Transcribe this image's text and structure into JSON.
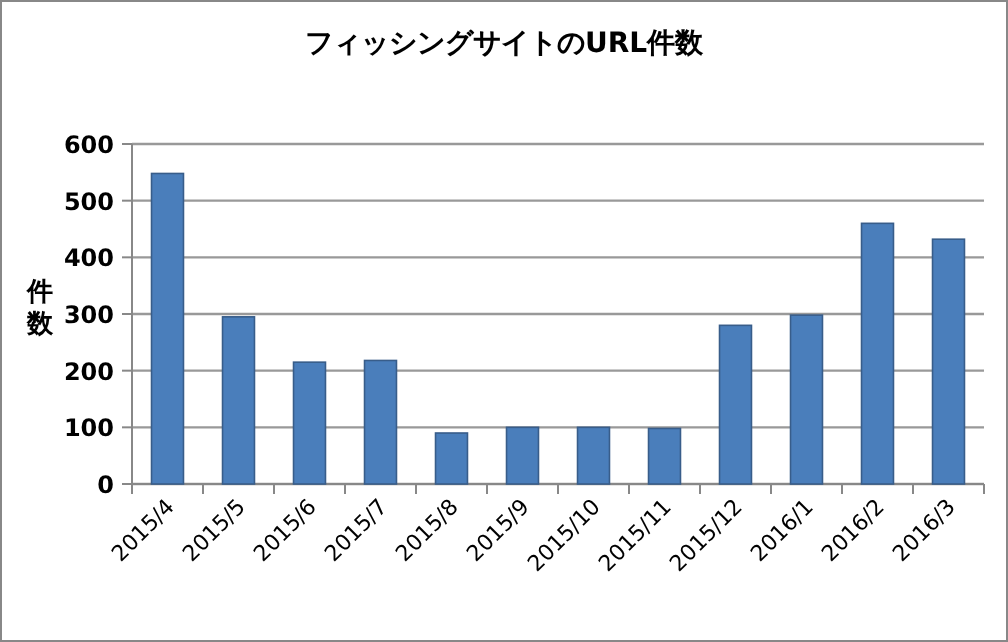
{
  "chart_data": {
    "type": "bar",
    "title": "フィッシングサイトのURL件数",
    "ylabel": "件数",
    "categories": [
      "2015/4",
      "2015/5",
      "2015/6",
      "2015/7",
      "2015/8",
      "2015/9",
      "2015/10",
      "2015/11",
      "2015/12",
      "2016/1",
      "2016/2",
      "2016/3"
    ],
    "values": [
      548,
      295,
      215,
      218,
      90,
      100,
      100,
      98,
      280,
      298,
      460,
      432
    ],
    "color": "#4a7ebb",
    "ylim": [
      0,
      600
    ],
    "yticks": [
      0,
      100,
      200,
      300,
      400,
      500,
      600
    ],
    "grid": "y"
  }
}
